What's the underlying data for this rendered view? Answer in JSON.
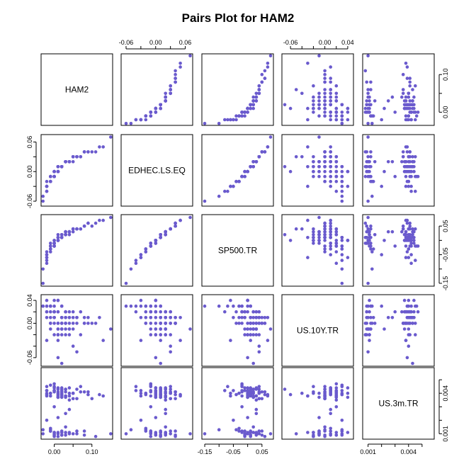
{
  "chart_data": {
    "type": "scatter",
    "title": "Pairs Plot for HAM2",
    "point_color": "#6a5acd",
    "variables": [
      {
        "name": "HAM2",
        "range": [
          -0.035,
          0.155
        ],
        "ticks": [
          0.0,
          0.1
        ],
        "tick_labels": [
          "0.00",
          "0.10"
        ],
        "minor_ticks": [
          0.05
        ],
        "values": [
          0.02,
          -0.01,
          0.05,
          0.0,
          0.03,
          -0.02,
          0.01,
          0.04,
          0.08,
          -0.01,
          0.02,
          0.0,
          0.06,
          -0.02,
          0.01,
          0.03,
          0.0,
          -0.01,
          0.07,
          0.02,
          0.1,
          0.01,
          -0.02,
          0.03,
          0.05,
          0.0,
          0.04,
          -0.01,
          0.02,
          0.09,
          0.01,
          0.0,
          0.03,
          -0.02,
          0.12,
          0.02,
          0.01,
          -0.01,
          0.04,
          0.06,
          0.0,
          0.02,
          -0.03,
          0.01,
          0.08,
          0.03,
          0.0,
          -0.01,
          0.05,
          0.02,
          0.15,
          0.01,
          0.04,
          0.0,
          -0.02,
          0.03,
          0.11,
          0.02,
          0.01,
          -0.01,
          0.06,
          0.0,
          0.03,
          0.02,
          -0.02,
          0.04,
          0.01,
          0.07,
          0.0,
          0.02,
          0.03,
          -0.01,
          0.05,
          0.01,
          0.02,
          0.0,
          0.09,
          0.03,
          -0.02,
          0.01,
          0.04,
          0.02,
          0.0,
          0.06,
          0.13,
          -0.01,
          0.02,
          0.03,
          0.01,
          0.0,
          0.05,
          0.02,
          -0.03,
          0.04,
          0.01,
          0.08,
          0.0,
          0.02
        ]
      },
      {
        "name": "EDHEC.LS.EQ",
        "range": [
          -0.07,
          0.075
        ],
        "ticks": [
          -0.06,
          0.0,
          0.06
        ],
        "tick_labels": [
          "-0.06",
          "0.00",
          "0.06"
        ],
        "minor_ticks": [
          -0.03,
          0.03
        ],
        "values": [
          0.01,
          -0.01,
          0.02,
          0.0,
          0.02,
          -0.02,
          0.01,
          0.02,
          0.04,
          -0.01,
          0.01,
          0.0,
          0.03,
          -0.03,
          0.01,
          0.02,
          -0.01,
          -0.02,
          0.03,
          0.01,
          0.04,
          0.0,
          -0.04,
          0.02,
          0.03,
          0.0,
          0.02,
          -0.01,
          0.01,
          0.04,
          0.01,
          -0.01,
          0.02,
          -0.03,
          0.05,
          0.01,
          0.0,
          -0.02,
          0.02,
          0.03,
          0.0,
          0.01,
          -0.05,
          0.0,
          0.04,
          0.02,
          -0.01,
          -0.01,
          0.03,
          0.01,
          0.07,
          0.01,
          0.02,
          0.0,
          -0.03,
          0.02,
          0.04,
          0.01,
          0.0,
          -0.02,
          0.03,
          -0.01,
          0.02,
          0.01,
          -0.04,
          0.02,
          0.0,
          0.03,
          -0.01,
          0.01,
          0.02,
          -0.02,
          0.03,
          0.0,
          0.01,
          0.0,
          0.04,
          0.02,
          -0.03,
          0.0,
          0.02,
          0.01,
          -0.01,
          0.03,
          0.05,
          -0.02,
          0.01,
          0.02,
          0.0,
          -0.01,
          0.03,
          0.01,
          -0.06,
          0.02,
          0.0,
          0.04,
          -0.01,
          0.01
        ]
      },
      {
        "name": "SP500.TR",
        "range": [
          -0.16,
          0.09
        ],
        "ticks": [
          -0.15,
          -0.05,
          0.05
        ],
        "tick_labels": [
          "-0.15",
          "-0.05",
          "0.05"
        ],
        "minor_ticks": [
          -0.1,
          0.0
        ],
        "values": [
          0.01,
          -0.02,
          0.03,
          0.0,
          0.02,
          -0.04,
          0.01,
          0.03,
          0.05,
          -0.02,
          0.02,
          -0.01,
          0.04,
          -0.06,
          0.01,
          0.02,
          -0.02,
          -0.03,
          0.04,
          0.01,
          0.05,
          0.0,
          -0.08,
          0.03,
          0.04,
          -0.01,
          0.03,
          -0.02,
          0.01,
          0.06,
          0.02,
          -0.01,
          0.03,
          -0.05,
          0.07,
          0.02,
          0.0,
          -0.03,
          0.03,
          0.04,
          -0.01,
          0.01,
          -0.1,
          0.0,
          0.05,
          0.02,
          -0.02,
          -0.01,
          0.04,
          0.01,
          0.08,
          0.01,
          0.03,
          0.0,
          -0.06,
          0.02,
          0.06,
          0.01,
          0.0,
          -0.03,
          0.04,
          -0.02,
          0.03,
          0.01,
          -0.07,
          0.03,
          0.0,
          0.04,
          -0.01,
          0.02,
          0.03,
          -0.04,
          0.04,
          0.0,
          0.01,
          -0.01,
          0.06,
          0.02,
          -0.05,
          0.0,
          0.03,
          0.01,
          -0.02,
          0.04,
          0.07,
          -0.03,
          0.01,
          0.02,
          0.0,
          -0.02,
          0.04,
          0.01,
          -0.15,
          0.02,
          0.0,
          0.05,
          -0.02,
          0.01
        ]
      },
      {
        "name": "US.10Y.TR",
        "range": [
          -0.075,
          0.05
        ],
        "ticks": [
          -0.06,
          0.0,
          0.04
        ],
        "tick_labels": [
          "-0.06",
          "0.00",
          "0.04"
        ],
        "minor_ticks": [
          -0.04,
          -0.02,
          0.02
        ],
        "values": [
          0.01,
          0.02,
          -0.01,
          0.03,
          0.0,
          0.02,
          -0.02,
          0.01,
          0.0,
          0.03,
          -0.01,
          0.02,
          0.01,
          0.04,
          -0.03,
          0.0,
          0.02,
          0.01,
          -0.02,
          0.03,
          0.0,
          -0.01,
          0.02,
          0.01,
          -0.04,
          0.02,
          0.0,
          0.03,
          -0.01,
          0.01,
          0.02,
          -0.02,
          0.0,
          0.03,
          0.01,
          -0.01,
          0.04,
          0.0,
          0.02,
          -0.05,
          0.01,
          0.0,
          0.03,
          -0.02,
          0.01,
          0.02,
          0.0,
          -0.01,
          0.02,
          0.03,
          -0.01,
          0.0,
          0.01,
          0.04,
          -0.03,
          0.02,
          0.0,
          0.01,
          -0.02,
          0.03,
          0.0,
          0.02,
          -0.01,
          0.01,
          0.03,
          -0.02,
          0.0,
          0.02,
          0.01,
          -0.07,
          0.02,
          0.0,
          0.01,
          -0.01,
          0.03,
          0.02,
          0.0,
          -0.02,
          0.01,
          0.04,
          -0.01,
          0.0,
          0.02,
          0.01,
          -0.03,
          0.03,
          0.0,
          0.01,
          -0.06,
          0.02,
          0.0,
          0.01,
          0.03,
          -0.01,
          0.02,
          0.0,
          0.01,
          -0.02
        ]
      },
      {
        "name": "US.3m.TR",
        "range": [
          0.0006,
          0.0059
        ],
        "ticks": [
          0.001,
          0.004
        ],
        "tick_labels": [
          "0.001",
          "0.004"
        ],
        "minor_ticks": [
          0.002,
          0.003,
          0.005
        ],
        "values": [
          0.004,
          0.0038,
          0.001,
          0.0042,
          0.0015,
          0.0039,
          0.0008,
          0.0044,
          0.0041,
          0.0012,
          0.0037,
          0.0009,
          0.0043,
          0.004,
          0.0011,
          0.0038,
          0.003,
          0.0014,
          0.0045,
          0.0039,
          0.0036,
          0.001,
          0.0042,
          0.0025,
          0.004,
          0.0009,
          0.0038,
          0.0046,
          0.0012,
          0.0041,
          0.0037,
          0.0008,
          0.0043,
          0.002,
          0.0039,
          0.0011,
          0.0044,
          0.004,
          0.0035,
          0.001,
          0.0042,
          0.0038,
          0.0013,
          0.0041,
          0.0009,
          0.0037,
          0.0045,
          0.0012,
          0.004,
          0.0039,
          0.001,
          0.0043,
          0.0028,
          0.0011,
          0.0038,
          0.0041,
          0.0008,
          0.0044,
          0.004,
          0.0012,
          0.0036,
          0.0042,
          0.0009,
          0.0039,
          0.0045,
          0.0011,
          0.0037,
          0.0041,
          0.001,
          0.0043,
          0.0038,
          0.0013,
          0.004,
          0.0022,
          0.0009,
          0.0044,
          0.0039,
          0.0011,
          0.0042,
          0.0037,
          0.001,
          0.0041,
          0.0047,
          0.0012,
          0.0038,
          0.004,
          0.0009,
          0.0043,
          0.0039,
          0.0011,
          0.0036,
          0.0042,
          0.001,
          0.004,
          0.0038,
          0.0012,
          0.0041,
          0.0009
        ]
      }
    ]
  }
}
